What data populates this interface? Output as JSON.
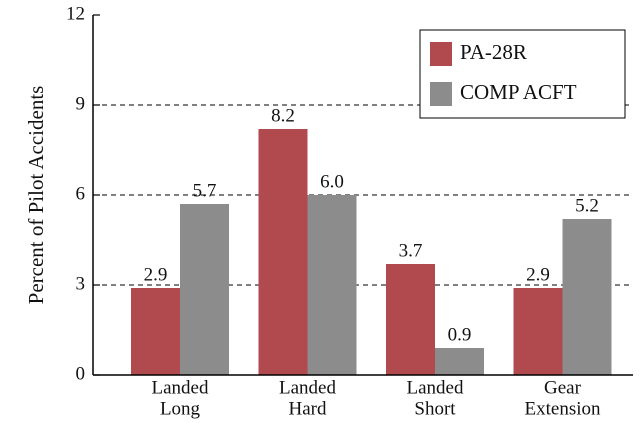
{
  "chart_data": {
    "type": "bar",
    "y_label": "Percent of Pilot Accidents",
    "categories": [
      [
        "Landed",
        "Long"
      ],
      [
        "Landed",
        "Hard"
      ],
      [
        "Landed",
        "Short"
      ],
      [
        "Gear",
        "Extension"
      ]
    ],
    "series": [
      {
        "name": "PA-28R",
        "color": "#b04a4e",
        "values": [
          2.9,
          8.2,
          3.7,
          2.9
        ],
        "value_labels": [
          "2.9",
          "8.2",
          "3.7",
          "2.9"
        ]
      },
      {
        "name": "COMP ACFT",
        "color": "#8c8c8c",
        "values": [
          5.7,
          6.0,
          0.9,
          5.2
        ],
        "value_labels": [
          "5.7",
          "6.0",
          "0.9",
          "5.2"
        ]
      }
    ],
    "ylim": [
      0,
      12
    ],
    "yticks": [
      0,
      3,
      6,
      9,
      12
    ],
    "grid": true,
    "legend": "upper right"
  }
}
